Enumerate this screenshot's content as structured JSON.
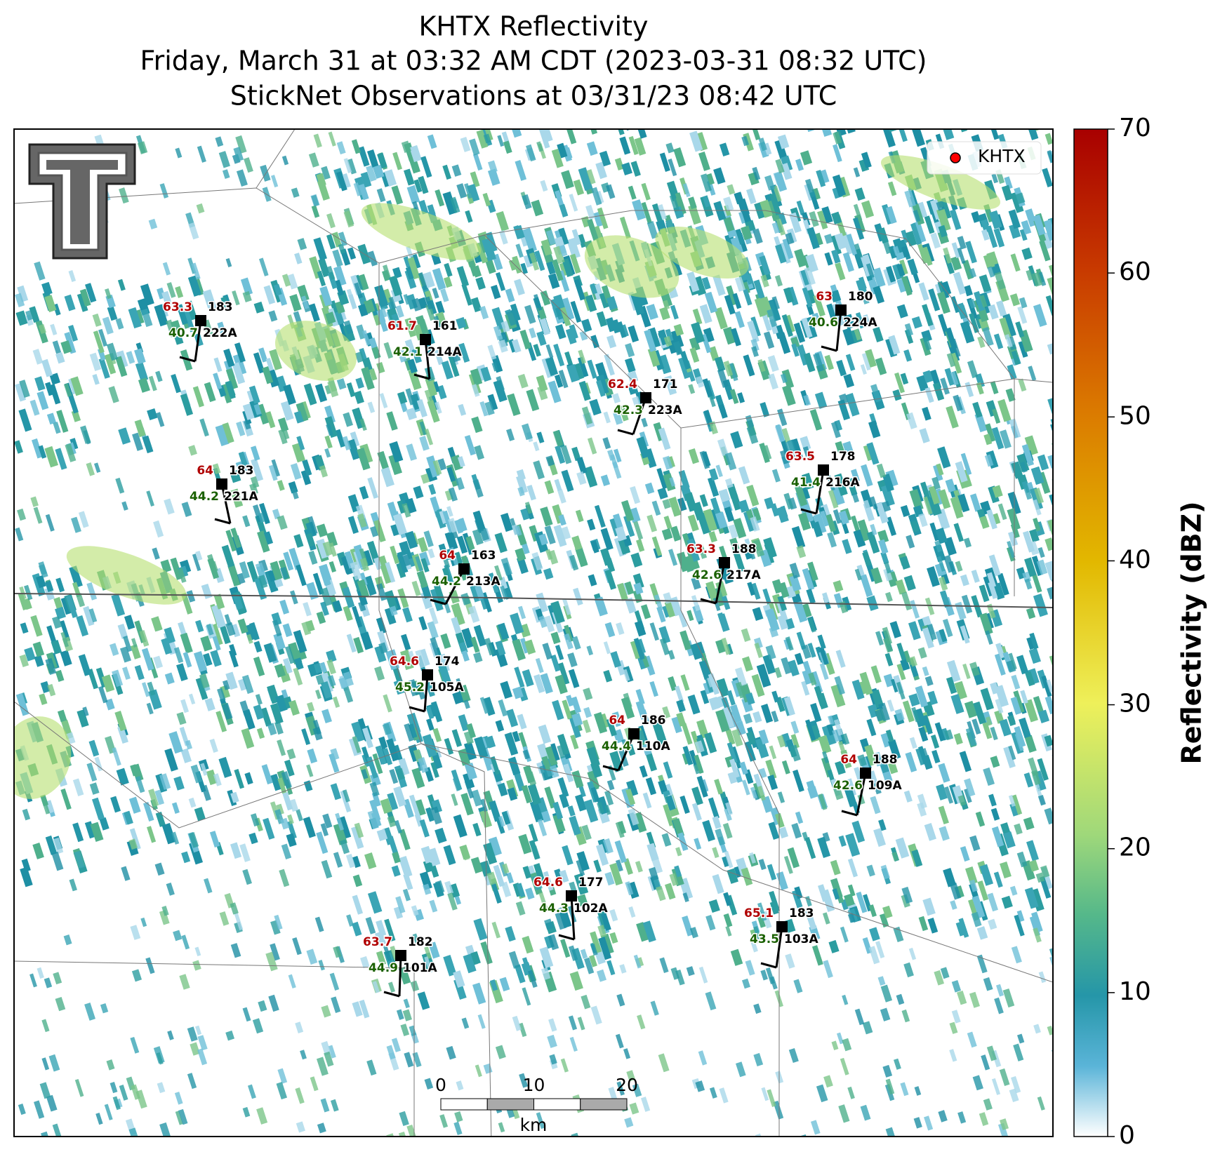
{
  "title": [
    "KHTX Reflectivity",
    "Friday, March 31 at 03:32 AM CDT (2023-03-31 08:32 UTC)",
    "StickNet Observations at 03/31/23 08:42 UTC"
  ],
  "legend": {
    "label": "KHTX",
    "color": "#ff0000"
  },
  "colorbar": {
    "label": "Reflectivity (dBZ)",
    "lim": [
      0,
      70
    ],
    "ticks": [
      0,
      10,
      20,
      30,
      40,
      50,
      60,
      70
    ]
  },
  "scalebar": {
    "ticks": [
      0,
      10,
      20
    ],
    "unit": "km"
  },
  "stations": [
    {
      "id": "222A",
      "temperature": 63.3,
      "value": 183,
      "dewpoint": 40.7
    },
    {
      "id": "214A",
      "temperature": 61.7,
      "value": 161,
      "dewpoint": 42.1
    },
    {
      "id": "223A",
      "temperature": 62.4,
      "value": 171,
      "dewpoint": 42.3
    },
    {
      "id": "224A",
      "temperature": 63.0,
      "value": 180,
      "dewpoint": 40.6
    },
    {
      "id": "221A",
      "temperature": 64.0,
      "value": 183,
      "dewpoint": 44.2
    },
    {
      "id": "216A",
      "temperature": 63.5,
      "value": 178,
      "dewpoint": 41.4
    },
    {
      "id": "213A",
      "temperature": 64.0,
      "value": 163,
      "dewpoint": 44.2
    },
    {
      "id": "217A",
      "temperature": 63.3,
      "value": 188,
      "dewpoint": 42.6
    },
    {
      "id": "105A",
      "temperature": 64.6,
      "value": 174,
      "dewpoint": 45.2
    },
    {
      "id": "110A",
      "temperature": 64.0,
      "value": 186,
      "dewpoint": 44.4
    },
    {
      "id": "109A",
      "temperature": 64.0,
      "value": 188,
      "dewpoint": 42.6
    },
    {
      "id": "102A",
      "temperature": 64.6,
      "value": 177,
      "dewpoint": 44.3
    },
    {
      "id": "103A",
      "temperature": 65.1,
      "value": 183,
      "dewpoint": 43.5
    },
    {
      "id": "101A",
      "temperature": 63.7,
      "value": 182,
      "dewpoint": 44.9
    }
  ]
}
